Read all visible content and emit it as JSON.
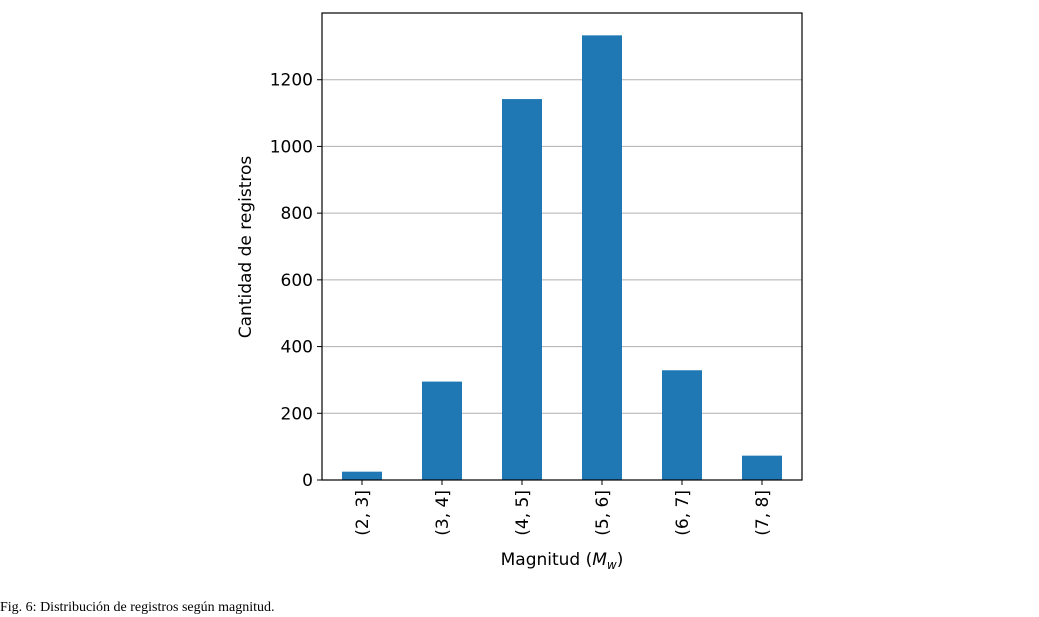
{
  "chart_data": {
    "type": "bar",
    "categories": [
      "(2, 3]",
      "(3, 4]",
      "(4, 5]",
      "(5, 6]",
      "(6, 7]",
      "(7, 8]"
    ],
    "values": [
      25,
      295,
      1142,
      1333,
      329,
      73
    ],
    "xlabel_prefix": "Magnitud (",
    "xlabel_symbol": "M",
    "xlabel_subscript": "w",
    "xlabel_suffix": ")",
    "ylabel": "Cantidad de registros",
    "ylim": [
      0,
      1400
    ],
    "yticks": [
      0,
      200,
      400,
      600,
      800,
      1000,
      1200
    ],
    "grid": "horizontal",
    "legend": "none",
    "bar_color": "#1f77b4",
    "grid_color": "#b0b0b0"
  },
  "caption": "Fig. 6: Distribución de registros según magnitud."
}
